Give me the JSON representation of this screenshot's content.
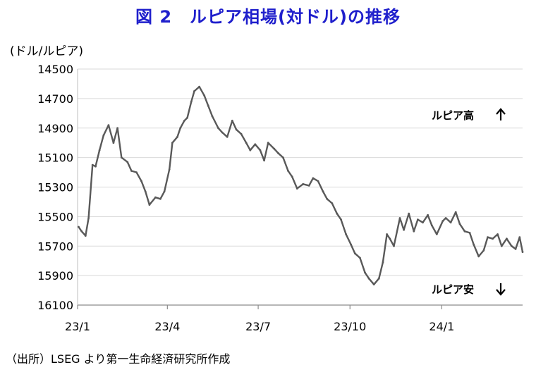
{
  "title": "図 2　ルピア相場(対ドル)の推移",
  "source": "（出所）LSEG より第一生命経済研究所作成",
  "chart_data": {
    "type": "line",
    "title": "図 2　ルピア相場(対ドル)の推移",
    "ylabel": "(ドル/ルピア)",
    "xlabel": "",
    "y_axis_inverted": true,
    "ylim": [
      14500,
      16100
    ],
    "yticks": [
      14500,
      14700,
      14900,
      15100,
      15300,
      15500,
      15700,
      15900,
      16100
    ],
    "xlim": [
      "2023-01-01",
      "2024-03-22"
    ],
    "xticks": [
      {
        "date": "2023-01-01",
        "label": "23/1"
      },
      {
        "date": "2023-04-01",
        "label": "23/4"
      },
      {
        "date": "2023-07-01",
        "label": "23/7"
      },
      {
        "date": "2023-10-01",
        "label": "23/10"
      },
      {
        "date": "2024-01-01",
        "label": "24/1"
      }
    ],
    "grid": "horizontal",
    "line_color": "#595959",
    "grid_color": "#d9d9d9",
    "series": [
      {
        "values": [
          [
            "2023-01-02",
            15570
          ],
          [
            "2023-01-05",
            15600
          ],
          [
            "2023-01-09",
            15630
          ],
          [
            "2023-01-12",
            15510
          ],
          [
            "2023-01-16",
            15150
          ],
          [
            "2023-01-19",
            15160
          ],
          [
            "2023-01-23",
            15050
          ],
          [
            "2023-01-27",
            14950
          ],
          [
            "2023-02-01",
            14880
          ],
          [
            "2023-02-06",
            15000
          ],
          [
            "2023-02-10",
            14900
          ],
          [
            "2023-02-14",
            15100
          ],
          [
            "2023-02-20",
            15130
          ],
          [
            "2023-02-24",
            15190
          ],
          [
            "2023-03-01",
            15200
          ],
          [
            "2023-03-06",
            15260
          ],
          [
            "2023-03-10",
            15330
          ],
          [
            "2023-03-14",
            15420
          ],
          [
            "2023-03-20",
            15370
          ],
          [
            "2023-03-25",
            15380
          ],
          [
            "2023-03-29",
            15330
          ],
          [
            "2023-04-03",
            15180
          ],
          [
            "2023-04-06",
            15000
          ],
          [
            "2023-04-11",
            14960
          ],
          [
            "2023-04-14",
            14900
          ],
          [
            "2023-04-18",
            14850
          ],
          [
            "2023-04-21",
            14830
          ],
          [
            "2023-04-25",
            14720
          ],
          [
            "2023-04-28",
            14650
          ],
          [
            "2023-05-03",
            14620
          ],
          [
            "2023-05-08",
            14680
          ],
          [
            "2023-05-12",
            14750
          ],
          [
            "2023-05-16",
            14820
          ],
          [
            "2023-05-22",
            14900
          ],
          [
            "2023-05-26",
            14930
          ],
          [
            "2023-05-31",
            14960
          ],
          [
            "2023-06-05",
            14850
          ],
          [
            "2023-06-09",
            14910
          ],
          [
            "2023-06-14",
            14940
          ],
          [
            "2023-06-19",
            15000
          ],
          [
            "2023-06-23",
            15050
          ],
          [
            "2023-06-28",
            15010
          ],
          [
            "2023-07-03",
            15050
          ],
          [
            "2023-07-07",
            15120
          ],
          [
            "2023-07-11",
            15000
          ],
          [
            "2023-07-17",
            15040
          ],
          [
            "2023-07-21",
            15070
          ],
          [
            "2023-07-26",
            15100
          ],
          [
            "2023-07-31",
            15190
          ],
          [
            "2023-08-04",
            15230
          ],
          [
            "2023-08-09",
            15310
          ],
          [
            "2023-08-15",
            15280
          ],
          [
            "2023-08-21",
            15290
          ],
          [
            "2023-08-25",
            15240
          ],
          [
            "2023-08-30",
            15260
          ],
          [
            "2023-09-04",
            15330
          ],
          [
            "2023-09-08",
            15380
          ],
          [
            "2023-09-13",
            15410
          ],
          [
            "2023-09-18",
            15480
          ],
          [
            "2023-09-22",
            15520
          ],
          [
            "2023-09-27",
            15620
          ],
          [
            "2023-10-02",
            15690
          ],
          [
            "2023-10-06",
            15750
          ],
          [
            "2023-10-11",
            15780
          ],
          [
            "2023-10-16",
            15880
          ],
          [
            "2023-10-20",
            15920
          ],
          [
            "2023-10-25",
            15960
          ],
          [
            "2023-10-30",
            15920
          ],
          [
            "2023-11-03",
            15810
          ],
          [
            "2023-11-07",
            15620
          ],
          [
            "2023-11-10",
            15650
          ],
          [
            "2023-11-14",
            15700
          ],
          [
            "2023-11-20",
            15510
          ],
          [
            "2023-11-24",
            15590
          ],
          [
            "2023-11-29",
            15480
          ],
          [
            "2023-12-04",
            15600
          ],
          [
            "2023-12-08",
            15520
          ],
          [
            "2023-12-13",
            15540
          ],
          [
            "2023-12-18",
            15490
          ],
          [
            "2023-12-22",
            15560
          ],
          [
            "2023-12-27",
            15620
          ],
          [
            "2024-01-02",
            15530
          ],
          [
            "2024-01-05",
            15510
          ],
          [
            "2024-01-10",
            15540
          ],
          [
            "2024-01-15",
            15470
          ],
          [
            "2024-01-19",
            15550
          ],
          [
            "2024-01-24",
            15600
          ],
          [
            "2024-01-29",
            15610
          ],
          [
            "2024-02-02",
            15690
          ],
          [
            "2024-02-07",
            15770
          ],
          [
            "2024-02-12",
            15730
          ],
          [
            "2024-02-16",
            15640
          ],
          [
            "2024-02-21",
            15650
          ],
          [
            "2024-02-26",
            15620
          ],
          [
            "2024-03-01",
            15700
          ],
          [
            "2024-03-06",
            15650
          ],
          [
            "2024-03-11",
            15700
          ],
          [
            "2024-03-15",
            15720
          ],
          [
            "2024-03-19",
            15640
          ],
          [
            "2024-03-22",
            15740
          ]
        ]
      }
    ],
    "annotations": [
      {
        "text": "ルピア高",
        "arrow": "up",
        "position": "upper-right"
      },
      {
        "text": "ルピア安",
        "arrow": "down",
        "position": "lower-right"
      }
    ]
  }
}
